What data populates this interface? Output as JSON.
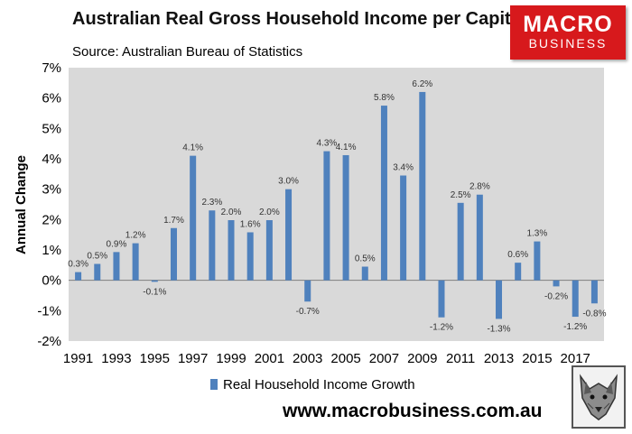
{
  "header": {
    "title": "Australian Real Gross Household Income per Capita",
    "source": "Source: Australian Bureau of Statistics"
  },
  "logo": {
    "line1": "MACRO",
    "line2": "BUSINESS",
    "color": "#d7191c"
  },
  "footer": {
    "url": "www.macrobusiness.com.au",
    "mascot_icon": "wolf-face-icon"
  },
  "chart_data": {
    "type": "bar",
    "title": "Australian Real Gross Household Income per Capita",
    "ylabel": "Annual Change",
    "xlabel": "",
    "ylim": [
      -2,
      7
    ],
    "yticks": [
      -2,
      -1,
      0,
      1,
      2,
      3,
      4,
      5,
      6,
      7
    ],
    "ytick_labels": [
      "-2%",
      "-1%",
      "0%",
      "1%",
      "2%",
      "3%",
      "4%",
      "5%",
      "6%",
      "7%"
    ],
    "xtick_labels": [
      "1991",
      "1993",
      "1995",
      "1997",
      "1999",
      "2001",
      "2003",
      "2005",
      "2007",
      "2009",
      "2011",
      "2013",
      "2015",
      "2017"
    ],
    "categories": [
      "1991",
      "1992",
      "1993",
      "1994",
      "1995",
      "1996",
      "1997",
      "1998",
      "1999",
      "2000",
      "2001",
      "2002",
      "2003",
      "2004",
      "2005",
      "2006",
      "2007",
      "2008",
      "2009",
      "2010",
      "2011",
      "2012",
      "2013",
      "2014",
      "2015",
      "2016",
      "2017",
      "2018"
    ],
    "series": [
      {
        "name": "Real Household Income Growth",
        "color": "#4f81bd",
        "values": [
          0.27,
          0.54,
          0.93,
          1.22,
          -0.05,
          1.72,
          4.1,
          2.3,
          1.98,
          1.58,
          1.98,
          3.0,
          -0.7,
          4.25,
          4.12,
          0.45,
          5.75,
          3.45,
          6.2,
          -1.22,
          2.55,
          2.82,
          -1.27,
          0.58,
          1.28,
          -0.2,
          -1.2,
          -0.76
        ],
        "labels": [
          "0.3%",
          "0.5%",
          "0.9%",
          "1.2%",
          "-0.1%",
          "1.7%",
          "4.1%",
          "2.3%",
          "2.0%",
          "1.6%",
          "2.0%",
          "3.0%",
          "-0.7%",
          "4.3%",
          "4.1%",
          "0.5%",
          "5.8%",
          "3.4%",
          "6.2%",
          "-1.2%",
          "2.5%",
          "2.8%",
          "-1.3%",
          "0.6%",
          "1.3%",
          "-0.2%",
          "-1.2%",
          "-0.8%"
        ]
      }
    ],
    "gridlines": false,
    "legend_position": "bottom",
    "plot_background": "#d9d9d9"
  }
}
